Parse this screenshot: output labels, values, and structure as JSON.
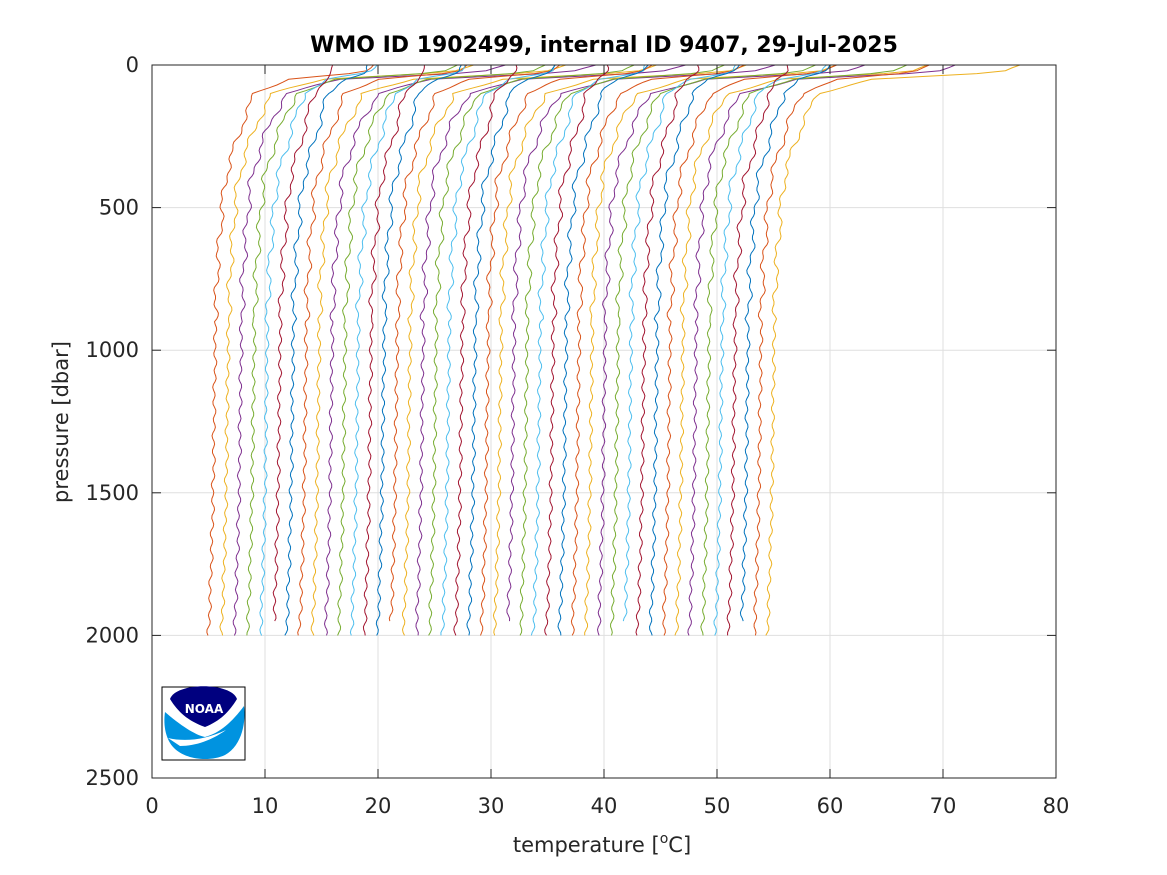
{
  "chart_data": {
    "type": "line",
    "title": "WMO ID 1902499, internal ID 9407, 29-Jul-2025",
    "xlabel_main": "temperature [",
    "xlabel_sup": "o",
    "xlabel_tail": "C]",
    "ylabel": "pressure [dbar]",
    "xlim": [
      0,
      80
    ],
    "ylim": [
      0,
      2500
    ],
    "y_reversed": true,
    "grid": true,
    "x_ticks": [
      "0",
      "10",
      "20",
      "30",
      "40",
      "50",
      "60",
      "70",
      "80"
    ],
    "y_ticks": [
      "0",
      "500",
      "1000",
      "1500",
      "2000",
      "2500"
    ],
    "profile_offset_per_cycle": 1.15,
    "profile_count": 44,
    "profile_depth_levels_dbar": [
      0,
      25,
      50,
      100,
      200,
      300,
      400,
      500,
      600,
      700,
      800,
      900,
      1000,
      1200,
      1400,
      1600,
      1800,
      2000
    ],
    "profile_base_temperature": [
      4.5,
      4.5,
      3.9,
      3.0,
      2.3,
      1.6,
      0.9,
      0.6,
      0.4,
      0.2,
      0.1,
      0.0,
      0.0,
      -0.1,
      -0.15,
      -0.25,
      -0.4,
      -0.6
    ],
    "surface_warm_anomaly": [
      19.0,
      17.0,
      5.0,
      1.0,
      0.3,
      0,
      0,
      0,
      0,
      0,
      0,
      0,
      0,
      0,
      0,
      0,
      0,
      0
    ],
    "first_profile_surface_x": 30,
    "first_profile_deep_x": 4.4,
    "colors": [
      "#0072bd",
      "#d95319",
      "#edb120",
      "#7e2f8e",
      "#77ac30",
      "#4dbeee",
      "#a2142f"
    ],
    "logo": {
      "text": "NOAA",
      "dark_blue": "#00007f",
      "light_blue": "#0093e0"
    }
  }
}
